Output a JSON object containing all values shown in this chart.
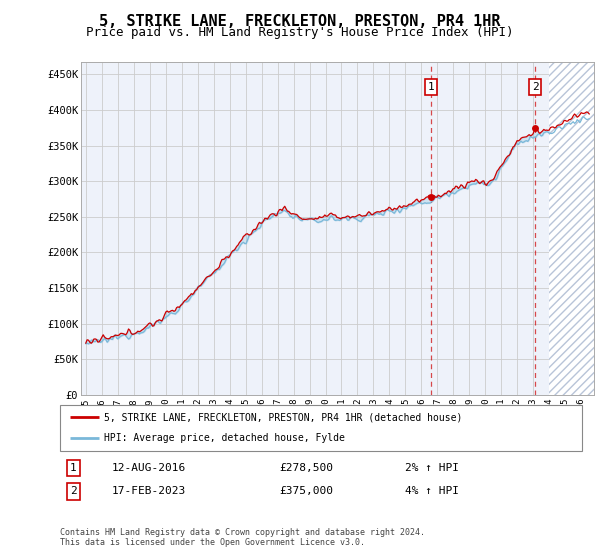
{
  "title": "5, STRIKE LANE, FRECKLETON, PRESTON, PR4 1HR",
  "subtitle": "Price paid vs. HM Land Registry's House Price Index (HPI)",
  "title_fontsize": 11,
  "subtitle_fontsize": 9,
  "ylabel_ticks": [
    "£0",
    "£50K",
    "£100K",
    "£150K",
    "£200K",
    "£250K",
    "£300K",
    "£350K",
    "£400K",
    "£450K"
  ],
  "ytick_values": [
    0,
    50000,
    100000,
    150000,
    200000,
    250000,
    300000,
    350000,
    400000,
    450000
  ],
  "ylim": [
    0,
    468000
  ],
  "xlim_start": 1994.7,
  "xlim_end": 2026.8,
  "xtick_years": [
    1995,
    1996,
    1997,
    1998,
    1999,
    2000,
    2001,
    2002,
    2003,
    2004,
    2005,
    2006,
    2007,
    2008,
    2009,
    2010,
    2011,
    2012,
    2013,
    2014,
    2015,
    2016,
    2017,
    2018,
    2019,
    2020,
    2021,
    2022,
    2023,
    2024,
    2025,
    2026
  ],
  "hpi_color": "#7ab8d9",
  "price_color": "#cc0000",
  "marker_color": "#cc0000",
  "grid_color": "#cccccc",
  "bg_color": "#eef2fa",
  "future_bg": "#ffffff",
  "sale1_x": 2016.62,
  "sale1_y": 278500,
  "sale2_x": 2023.12,
  "sale2_y": 375000,
  "future_start": 2024.0,
  "legend_line1": "5, STRIKE LANE, FRECKLETON, PRESTON, PR4 1HR (detached house)",
  "legend_line2": "HPI: Average price, detached house, Fylde",
  "note1_label": "1",
  "note1_date": "12-AUG-2016",
  "note1_price": "£278,500",
  "note1_hpi": "2% ↑ HPI",
  "note2_label": "2",
  "note2_date": "17-FEB-2023",
  "note2_price": "£375,000",
  "note2_hpi": "4% ↑ HPI",
  "footer": "Contains HM Land Registry data © Crown copyright and database right 2024.\nThis data is licensed under the Open Government Licence v3.0."
}
